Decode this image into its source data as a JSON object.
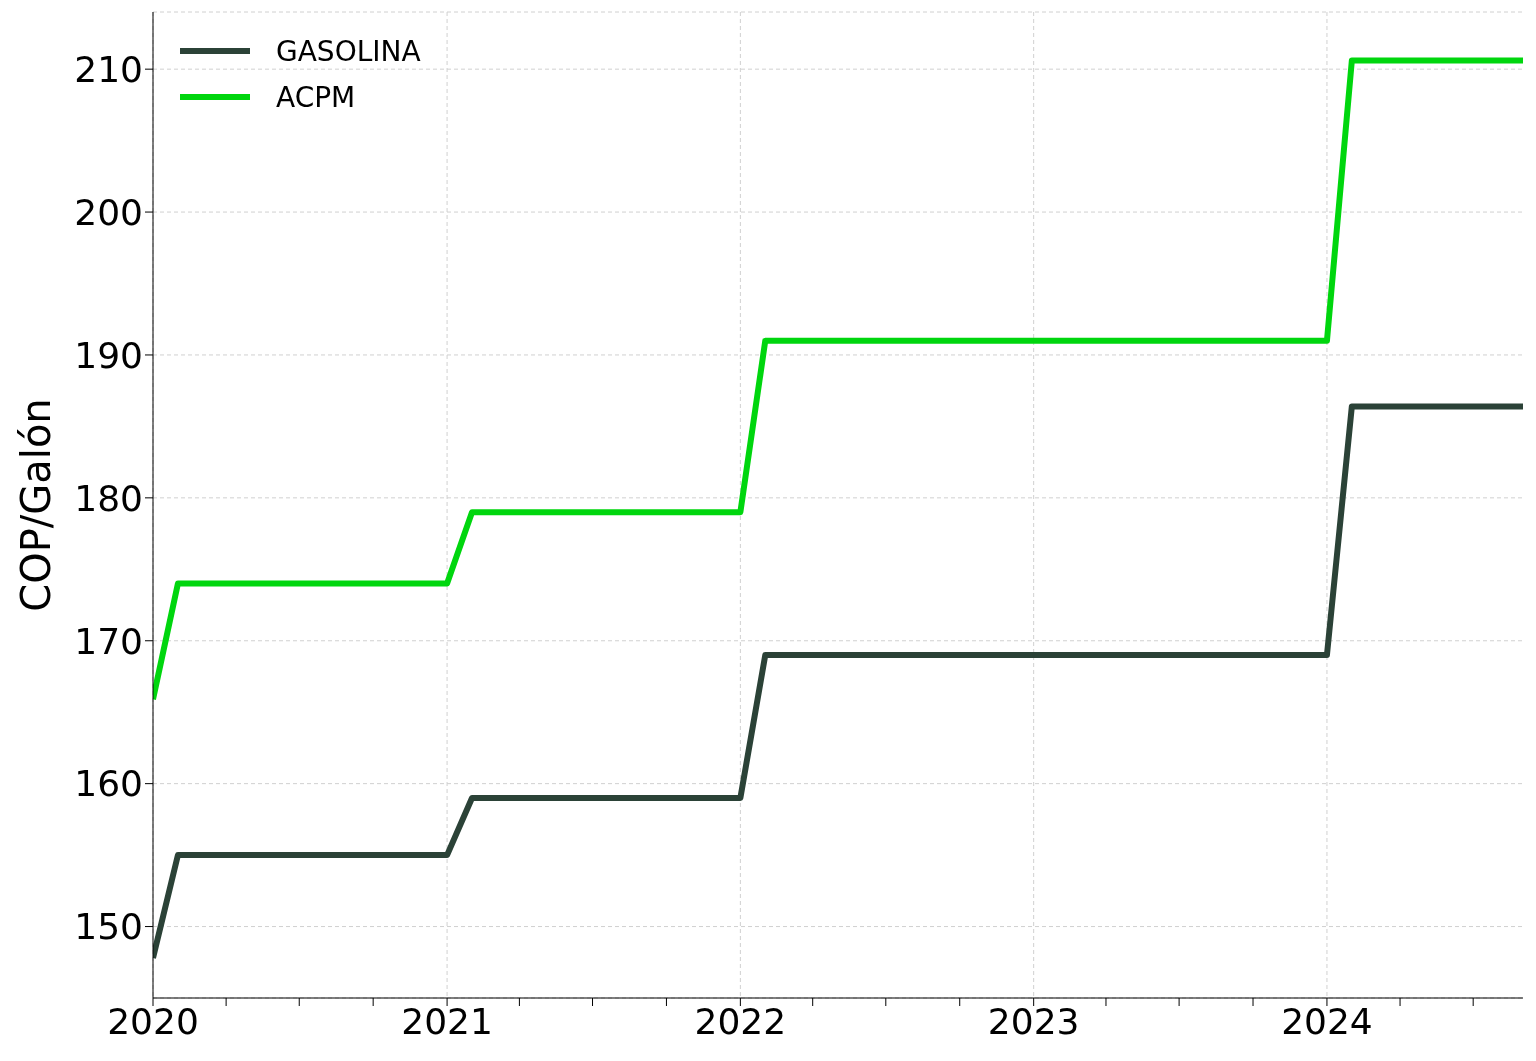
{
  "chart_data": {
    "type": "line",
    "ylabel": "COP/Galón",
    "x": [
      "2020-01",
      "2020-02",
      "2021-01",
      "2021-02",
      "2022-01",
      "2022-02",
      "2024-01",
      "2024-02",
      "2024-09"
    ],
    "series": [
      {
        "name": "GASOLINA",
        "color": "#2b4237",
        "values": [
          147.8,
          155,
          155,
          159,
          159,
          169,
          169,
          186.4,
          186.4
        ]
      },
      {
        "name": "ACPM",
        "color": "#00d60e",
        "values": [
          165.9,
          174,
          174,
          179,
          179,
          191,
          191,
          210.6,
          210.6
        ]
      }
    ],
    "xlim": [
      "2020-01",
      "2024-09"
    ],
    "xticks": [
      "2020",
      {
        "value": "2020-04",
        "label": null
      },
      {
        "value": "2020-07",
        "label": null
      },
      {
        "value": "2020-10",
        "label": null
      },
      "2021",
      {
        "value": "2021-04",
        "label": null
      },
      {
        "value": "2021-07",
        "label": null
      },
      {
        "value": "2021-10",
        "label": null
      },
      "2022",
      {
        "value": "2022-04",
        "label": null
      },
      {
        "value": "2022-07",
        "label": null
      },
      {
        "value": "2022-10",
        "label": null
      },
      "2023",
      {
        "value": "2023-04",
        "label": null
      },
      {
        "value": "2023-07",
        "label": null
      },
      {
        "value": "2023-10",
        "label": null
      },
      "2024",
      {
        "value": "2024-04",
        "label": null
      },
      {
        "value": "2024-07",
        "label": null
      }
    ],
    "ylim": [
      145,
      214
    ],
    "yticks": [
      150,
      160,
      170,
      180,
      190,
      200,
      210
    ],
    "grid": true,
    "legend": "top left",
    "line_style": "solid",
    "marker": "none"
  }
}
